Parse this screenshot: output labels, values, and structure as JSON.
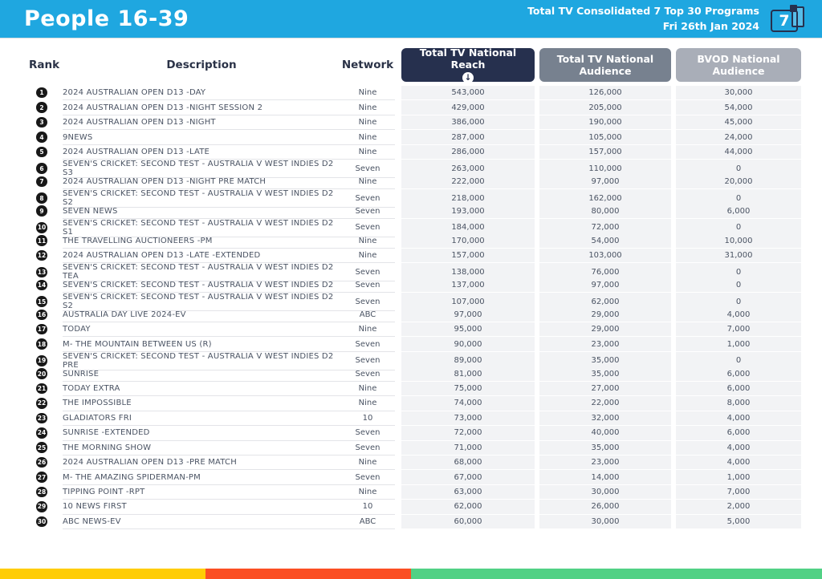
{
  "colors": {
    "cyan": "#1FA7E0",
    "navy": "#26304E",
    "slate": "#77818F",
    "lightgray": "#A9AEB8",
    "rowtext": "#4A5363",
    "cellbg": "#F2F3F5",
    "rowline": "#E3E4E8"
  },
  "header": {
    "title": "People 16-39",
    "subtitle_line1": "Total TV Consolidated 7 Top 30 Programs",
    "subtitle_line2": "Fri 26th Jan 2024",
    "page_number": "7"
  },
  "table": {
    "columns": {
      "rank": "Rank",
      "description": "Description",
      "network": "Network",
      "reach": "Total TV National Reach",
      "audience": "Total TV National Audience",
      "bvod": "BVOD National Audience"
    },
    "sort_icon": "↓",
    "rows": [
      {
        "rank": "1",
        "description": "2024 AUSTRALIAN OPEN D13 -DAY",
        "network": "Nine",
        "reach": "543,000",
        "audience": "126,000",
        "bvod": "30,000"
      },
      {
        "rank": "2",
        "description": "2024 AUSTRALIAN OPEN D13 -NIGHT SESSION 2",
        "network": "Nine",
        "reach": "429,000",
        "audience": "205,000",
        "bvod": "54,000"
      },
      {
        "rank": "3",
        "description": "2024 AUSTRALIAN OPEN D13 -NIGHT",
        "network": "Nine",
        "reach": "386,000",
        "audience": "190,000",
        "bvod": "45,000"
      },
      {
        "rank": "4",
        "description": "9NEWS",
        "network": "Nine",
        "reach": "287,000",
        "audience": "105,000",
        "bvod": "24,000"
      },
      {
        "rank": "5",
        "description": "2024 AUSTRALIAN OPEN D13 -LATE",
        "network": "Nine",
        "reach": "286,000",
        "audience": "157,000",
        "bvod": "44,000"
      },
      {
        "rank": "6",
        "description": "SEVEN'S CRICKET: SECOND TEST - AUSTRALIA V WEST INDIES D2 S3",
        "network": "Seven",
        "reach": "263,000",
        "audience": "110,000",
        "bvod": "0"
      },
      {
        "rank": "7",
        "description": "2024 AUSTRALIAN OPEN D13 -NIGHT PRE MATCH",
        "network": "Nine",
        "reach": "222,000",
        "audience": "97,000",
        "bvod": "20,000"
      },
      {
        "rank": "8",
        "description": "SEVEN'S CRICKET: SECOND TEST - AUSTRALIA V WEST INDIES D2 S2",
        "network": "Seven",
        "reach": "218,000",
        "audience": "162,000",
        "bvod": "0"
      },
      {
        "rank": "9",
        "description": "SEVEN NEWS",
        "network": "Seven",
        "reach": "193,000",
        "audience": "80,000",
        "bvod": "6,000"
      },
      {
        "rank": "10",
        "description": "SEVEN'S CRICKET: SECOND TEST - AUSTRALIA V WEST INDIES D2 S1",
        "network": "Seven",
        "reach": "184,000",
        "audience": "72,000",
        "bvod": "0"
      },
      {
        "rank": "11",
        "description": "THE TRAVELLING AUCTIONEERS -PM",
        "network": "Nine",
        "reach": "170,000",
        "audience": "54,000",
        "bvod": "10,000"
      },
      {
        "rank": "12",
        "description": "2024 AUSTRALIAN OPEN D13 -LATE -EXTENDED",
        "network": "Nine",
        "reach": "157,000",
        "audience": "103,000",
        "bvod": "31,000"
      },
      {
        "rank": "13",
        "description": "SEVEN'S CRICKET: SECOND TEST - AUSTRALIA V WEST INDIES D2 TEA",
        "network": "Seven",
        "reach": "138,000",
        "audience": "76,000",
        "bvod": "0"
      },
      {
        "rank": "14",
        "description": "SEVEN'S CRICKET: SECOND TEST - AUSTRALIA V WEST INDIES D2",
        "network": "Seven",
        "reach": "137,000",
        "audience": "97,000",
        "bvod": "0"
      },
      {
        "rank": "15",
        "description": "SEVEN'S CRICKET: SECOND TEST - AUSTRALIA V WEST INDIES D2 S2",
        "network": "Seven",
        "reach": "107,000",
        "audience": "62,000",
        "bvod": "0"
      },
      {
        "rank": "16",
        "description": "AUSTRALIA DAY LIVE 2024-EV",
        "network": "ABC",
        "reach": "97,000",
        "audience": "29,000",
        "bvod": "4,000"
      },
      {
        "rank": "17",
        "description": "TODAY",
        "network": "Nine",
        "reach": "95,000",
        "audience": "29,000",
        "bvod": "7,000"
      },
      {
        "rank": "18",
        "description": "M- THE MOUNTAIN BETWEEN US (R)",
        "network": "Seven",
        "reach": "90,000",
        "audience": "23,000",
        "bvod": "1,000"
      },
      {
        "rank": "19",
        "description": "SEVEN'S CRICKET: SECOND TEST - AUSTRALIA V WEST INDIES D2 PRE",
        "network": "Seven",
        "reach": "89,000",
        "audience": "35,000",
        "bvod": "0"
      },
      {
        "rank": "20",
        "description": "SUNRISE",
        "network": "Seven",
        "reach": "81,000",
        "audience": "35,000",
        "bvod": "6,000"
      },
      {
        "rank": "21",
        "description": "TODAY EXTRA",
        "network": "Nine",
        "reach": "75,000",
        "audience": "27,000",
        "bvod": "6,000"
      },
      {
        "rank": "22",
        "description": "THE IMPOSSIBLE",
        "network": "Nine",
        "reach": "74,000",
        "audience": "22,000",
        "bvod": "8,000"
      },
      {
        "rank": "23",
        "description": "GLADIATORS FRI",
        "network": "10",
        "reach": "73,000",
        "audience": "32,000",
        "bvod": "4,000"
      },
      {
        "rank": "24",
        "description": "SUNRISE -EXTENDED",
        "network": "Seven",
        "reach": "72,000",
        "audience": "40,000",
        "bvod": "6,000"
      },
      {
        "rank": "25",
        "description": "THE MORNING SHOW",
        "network": "Seven",
        "reach": "71,000",
        "audience": "35,000",
        "bvod": "4,000"
      },
      {
        "rank": "26",
        "description": "2024 AUSTRALIAN OPEN D13 -PRE MATCH",
        "network": "Nine",
        "reach": "68,000",
        "audience": "23,000",
        "bvod": "4,000"
      },
      {
        "rank": "27",
        "description": "M- THE AMAZING SPIDERMAN-PM",
        "network": "Seven",
        "reach": "67,000",
        "audience": "14,000",
        "bvod": "1,000"
      },
      {
        "rank": "28",
        "description": "TIPPING POINT -RPT",
        "network": "Nine",
        "reach": "63,000",
        "audience": "30,000",
        "bvod": "7,000"
      },
      {
        "rank": "29",
        "description": "10 NEWS FIRST",
        "network": "10",
        "reach": "62,000",
        "audience": "26,000",
        "bvod": "2,000"
      },
      {
        "rank": "30",
        "description": "ABC NEWS-EV",
        "network": "ABC",
        "reach": "60,000",
        "audience": "30,000",
        "bvod": "5,000"
      }
    ]
  },
  "footer": {
    "segments": [
      {
        "name": "yellow",
        "color": "#FFCD05",
        "width_pct": 25
      },
      {
        "name": "orange-red",
        "color": "#FB4E23",
        "width_pct": 25
      },
      {
        "name": "green",
        "color": "#51D185",
        "width_pct": 50
      }
    ]
  }
}
